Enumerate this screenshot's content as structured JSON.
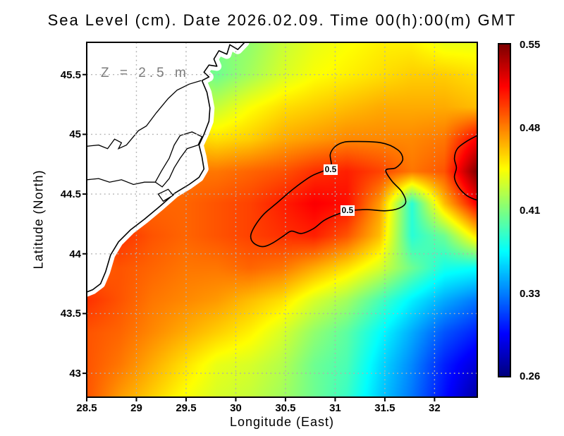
{
  "chart_data": {
    "type": "heatmap",
    "title": "Sea Level (cm). Date 2026.02.09. Time 00(h):00(m) GMT",
    "xlabel": "Longitude (East)",
    "ylabel": "Latitude (North)",
    "annotation": {
      "text": "Z = 2.5 m"
    },
    "xlim": [
      28.5,
      32.43
    ],
    "ylim": [
      42.8,
      45.77
    ],
    "x_ticks": [
      28.5,
      29,
      29.5,
      30,
      30.5,
      31,
      31.5,
      32
    ],
    "y_ticks": [
      43,
      43.5,
      44,
      44.5,
      45,
      45.5
    ],
    "grid_on": true,
    "gridline_color": "#b0b0b0",
    "land_color": "#ffffff",
    "coast_color": "#000000",
    "colorbar": {
      "colormap": "jet",
      "min": 0.26,
      "max": 0.55,
      "labels": [
        "0.55",
        "0.48",
        "0.41",
        "0.33",
        "0.26"
      ]
    },
    "grid": {
      "lons": [
        28.5,
        28.83,
        29.16,
        29.48,
        29.81,
        30.14,
        30.47,
        30.8,
        31.12,
        31.45,
        31.78,
        32.1,
        32.43
      ],
      "lats": [
        45.77,
        45.5,
        45.23,
        44.96,
        44.69,
        44.42,
        44.15,
        43.88,
        43.61,
        43.34,
        43.07,
        42.8
      ],
      "values": [
        [
          0.42,
          0.42,
          0.415,
          0.41,
          0.405,
          0.41,
          0.425,
          0.435,
          0.44,
          0.445,
          0.445,
          0.435,
          0.435
        ],
        [
          0.43,
          0.43,
          0.42,
          0.41,
          0.4,
          0.415,
          0.43,
          0.44,
          0.445,
          0.45,
          0.455,
          0.455,
          0.45
        ],
        [
          0.45,
          0.45,
          0.44,
          0.43,
          0.425,
          0.44,
          0.45,
          0.455,
          0.46,
          0.465,
          0.465,
          0.465,
          0.46
        ],
        [
          0.46,
          0.46,
          0.46,
          0.455,
          0.45,
          0.455,
          0.465,
          0.47,
          0.475,
          0.475,
          0.475,
          0.48,
          0.515
        ],
        [
          0.47,
          0.475,
          0.475,
          0.48,
          0.48,
          0.485,
          0.49,
          0.5,
          0.505,
          0.495,
          0.48,
          0.49,
          0.55
        ],
        [
          0.475,
          0.48,
          0.485,
          0.485,
          0.49,
          0.495,
          0.505,
          0.515,
          0.51,
          0.47,
          0.38,
          0.46,
          0.515
        ],
        [
          0.49,
          0.5,
          0.49,
          0.485,
          0.49,
          0.495,
          0.5,
          0.505,
          0.49,
          0.46,
          0.38,
          0.4,
          0.45
        ],
        [
          0.485,
          0.49,
          0.485,
          0.48,
          0.48,
          0.485,
          0.48,
          0.465,
          0.45,
          0.43,
          0.4,
          0.375,
          0.37
        ],
        [
          0.5,
          0.49,
          0.48,
          0.475,
          0.47,
          0.46,
          0.45,
          0.43,
          0.415,
          0.39,
          0.365,
          0.345,
          0.33
        ],
        [
          0.49,
          0.485,
          0.475,
          0.465,
          0.455,
          0.445,
          0.43,
          0.41,
          0.395,
          0.37,
          0.345,
          0.32,
          0.305
        ],
        [
          0.49,
          0.48,
          0.465,
          0.45,
          0.435,
          0.43,
          0.42,
          0.4,
          0.39,
          0.36,
          0.335,
          0.305,
          0.285
        ],
        [
          0.49,
          0.47,
          0.455,
          0.44,
          0.43,
          0.425,
          0.415,
          0.4,
          0.385,
          0.355,
          0.33,
          0.3,
          0.27
        ]
      ]
    },
    "contours": [
      {
        "level": 0.5,
        "label": "0.5",
        "closed": true,
        "label_points": [
          [
            30.98,
            44.7
          ],
          [
            31.15,
            44.36
          ]
        ],
        "points": [
          [
            31.17,
            44.94
          ],
          [
            31.46,
            44.93
          ],
          [
            31.63,
            44.87
          ],
          [
            31.68,
            44.79
          ],
          [
            31.61,
            44.72
          ],
          [
            31.51,
            44.7
          ],
          [
            31.57,
            44.61
          ],
          [
            31.67,
            44.52
          ],
          [
            31.71,
            44.43
          ],
          [
            31.64,
            44.38
          ],
          [
            31.5,
            44.36
          ],
          [
            31.32,
            44.37
          ],
          [
            31.15,
            44.36
          ],
          [
            31.02,
            44.33
          ],
          [
            30.89,
            44.28
          ],
          [
            30.78,
            44.21
          ],
          [
            30.66,
            44.17
          ],
          [
            30.56,
            44.19
          ],
          [
            30.48,
            44.15
          ],
          [
            30.37,
            44.09
          ],
          [
            30.27,
            44.06
          ],
          [
            30.18,
            44.09
          ],
          [
            30.15,
            44.15
          ],
          [
            30.19,
            44.23
          ],
          [
            30.28,
            44.33
          ],
          [
            30.42,
            44.43
          ],
          [
            30.59,
            44.55
          ],
          [
            30.76,
            44.65
          ],
          [
            30.9,
            44.7
          ],
          [
            30.96,
            44.74
          ],
          [
            30.95,
            44.83
          ],
          [
            30.99,
            44.89
          ],
          [
            31.07,
            44.93
          ]
        ]
      },
      {
        "level": 0.5,
        "label": null,
        "closed": false,
        "label_points": [],
        "points": [
          [
            32.43,
            44.99
          ],
          [
            32.32,
            44.94
          ],
          [
            32.23,
            44.88
          ],
          [
            32.2,
            44.8
          ],
          [
            32.22,
            44.72
          ],
          [
            32.2,
            44.64
          ],
          [
            32.24,
            44.56
          ],
          [
            32.32,
            44.49
          ],
          [
            32.39,
            44.46
          ],
          [
            32.43,
            44.45
          ]
        ]
      }
    ],
    "coastline": {
      "land": [
        [
          28.5,
          45.77
        ],
        [
          30.09,
          45.77
        ],
        [
          30.02,
          45.71
        ],
        [
          29.94,
          45.75
        ],
        [
          29.91,
          45.67
        ],
        [
          29.83,
          45.7
        ],
        [
          29.78,
          45.63
        ],
        [
          29.81,
          45.57
        ],
        [
          29.73,
          45.58
        ],
        [
          29.68,
          45.52
        ],
        [
          29.73,
          45.48
        ],
        [
          29.66,
          45.45
        ],
        [
          29.71,
          45.35
        ],
        [
          29.74,
          45.22
        ],
        [
          29.73,
          45.11
        ],
        [
          29.68,
          45.0
        ],
        [
          29.63,
          44.91
        ],
        [
          29.66,
          44.81
        ],
        [
          29.68,
          44.71
        ],
        [
          29.63,
          44.64
        ],
        [
          29.53,
          44.58
        ],
        [
          29.39,
          44.51
        ],
        [
          29.24,
          44.4
        ],
        [
          29.08,
          44.29
        ],
        [
          28.94,
          44.2
        ],
        [
          28.82,
          44.1
        ],
        [
          28.74,
          43.99
        ],
        [
          28.69,
          43.85
        ],
        [
          28.64,
          43.75
        ],
        [
          28.56,
          43.7
        ],
        [
          28.5,
          43.68
        ]
      ],
      "delta_north_edge": [
        [
          28.5,
          44.9
        ],
        [
          28.62,
          44.91
        ],
        [
          28.71,
          44.88
        ],
        [
          28.78,
          44.96
        ],
        [
          28.85,
          44.93
        ],
        [
          28.82,
          44.88
        ],
        [
          28.9,
          44.91
        ],
        [
          29.02,
          45.03
        ],
        [
          29.1,
          45.07
        ],
        [
          29.2,
          45.18
        ],
        [
          29.32,
          45.3
        ],
        [
          29.41,
          45.37
        ],
        [
          29.53,
          45.42
        ],
        [
          29.65,
          45.45
        ]
      ],
      "branch2": [
        [
          28.5,
          44.62
        ],
        [
          28.62,
          44.63
        ],
        [
          28.73,
          44.6
        ],
        [
          28.85,
          44.62
        ],
        [
          28.97,
          44.58
        ],
        [
          29.08,
          44.6
        ],
        [
          29.19,
          44.6
        ]
      ],
      "lagoon": [
        [
          29.44,
          44.99
        ],
        [
          29.56,
          45.02
        ],
        [
          29.66,
          44.98
        ],
        [
          29.62,
          44.91
        ],
        [
          29.51,
          44.88
        ],
        [
          29.44,
          44.8
        ],
        [
          29.38,
          44.72
        ],
        [
          29.33,
          44.63
        ],
        [
          29.26,
          44.56
        ],
        [
          29.19,
          44.6
        ],
        [
          29.25,
          44.69
        ],
        [
          29.33,
          44.8
        ],
        [
          29.38,
          44.91
        ]
      ],
      "lagoon_small": [
        [
          29.22,
          44.5
        ],
        [
          29.32,
          44.54
        ],
        [
          29.37,
          44.49
        ],
        [
          29.27,
          44.44
        ]
      ]
    }
  }
}
